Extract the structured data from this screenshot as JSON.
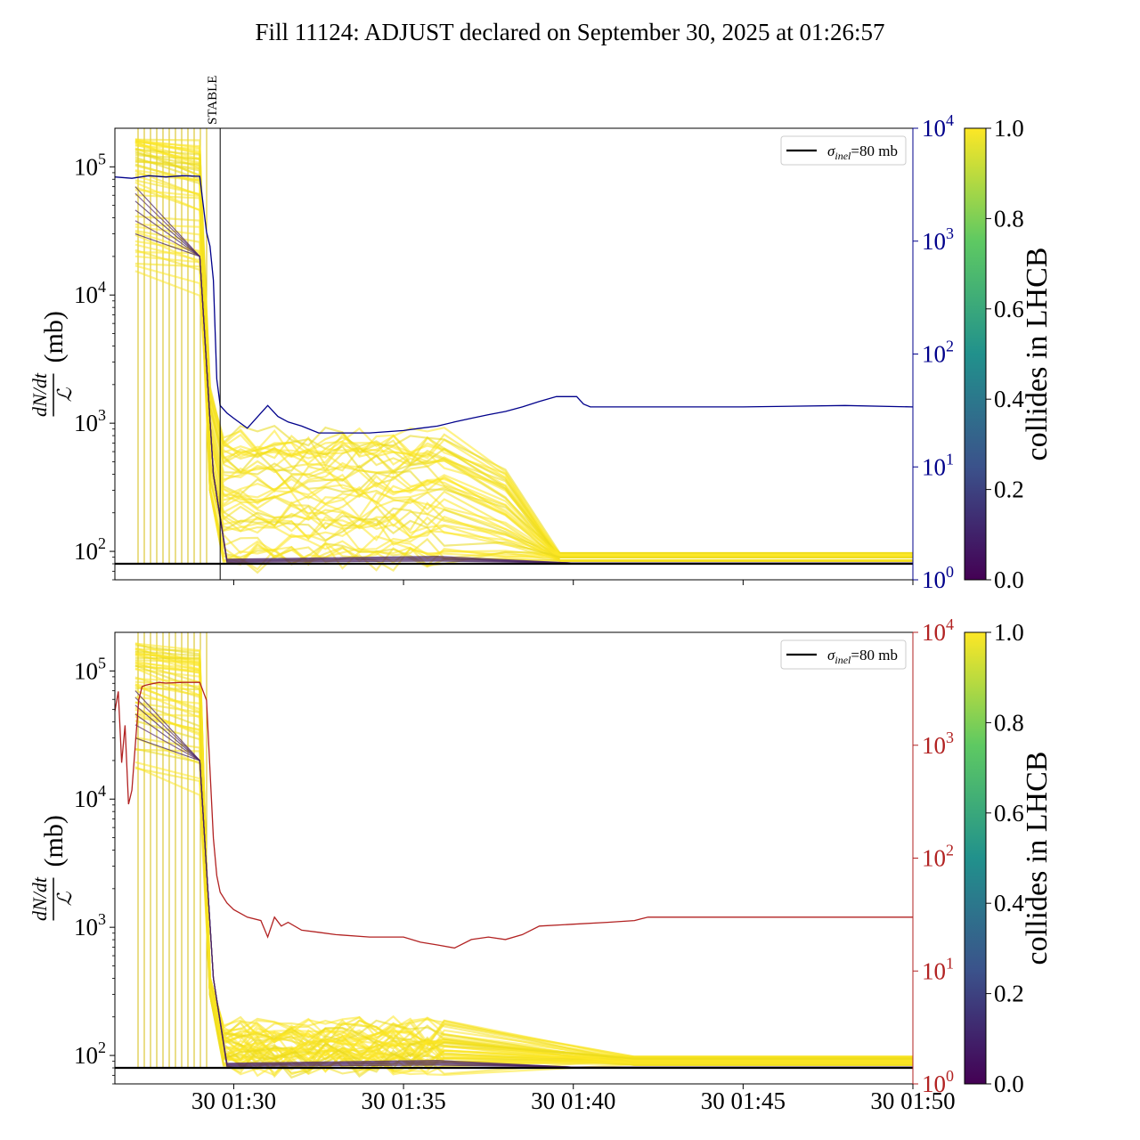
{
  "title": "Fill 11124: ADJUST declared on September 30, 2025 at 01:26:57",
  "chart_data": [
    {
      "type": "line",
      "panel": "top",
      "ylabel": "dN/dt / L (mb)",
      "ylabel_parts": {
        "numerator": "dN/dt",
        "denominator": "ℒ",
        "unit": "(mb)"
      },
      "yscale": "log",
      "ylim": [
        60,
        200000
      ],
      "y_ticks": [
        {
          "base": "10",
          "exp": "2",
          "value": 100
        },
        {
          "base": "10",
          "exp": "3",
          "value": 1000
        },
        {
          "base": "10",
          "exp": "4",
          "value": 10000
        },
        {
          "base": "10",
          "exp": "5",
          "value": 100000
        }
      ],
      "xlim_minutes": [
        26.5,
        50.0
      ],
      "x_ticks": [],
      "y2_scale": "log",
      "y2lim": [
        1,
        10000
      ],
      "y2_ticks": [
        {
          "base": "10",
          "exp": "0",
          "value": 1
        },
        {
          "base": "10",
          "exp": "1",
          "value": 10
        },
        {
          "base": "10",
          "exp": "2",
          "value": 100
        },
        {
          "base": "10",
          "exp": "3",
          "value": 1000
        },
        {
          "base": "10",
          "exp": "4",
          "value": 10000
        }
      ],
      "y2_color": "#00008b",
      "vline": {
        "label": "STABLE",
        "x_minute": 29.6
      },
      "legend": {
        "label_symbol": "σ",
        "label_sub": "inel",
        "label_value": "=80 mb",
        "placement": "upper right"
      },
      "reference_line": {
        "value": 80
      },
      "right_axis_series": {
        "color": "#00008b",
        "x_minutes": [
          26.5,
          27.0,
          27.5,
          28.0,
          28.5,
          29.0,
          29.2,
          29.3,
          29.4,
          29.5,
          29.6,
          29.8,
          30.0,
          30.4,
          30.8,
          31.0,
          31.3,
          31.6,
          32.0,
          32.5,
          33.0,
          34.0,
          35.0,
          35.5,
          36.0,
          36.5,
          37.0,
          37.5,
          38.0,
          38.5,
          39.0,
          39.5,
          39.8,
          40.1,
          40.3,
          40.5,
          41.0,
          42.0,
          43.0,
          45.0,
          48.0,
          50.0
        ],
        "values": [
          3700,
          3600,
          3800,
          3700,
          3800,
          3750,
          1200,
          900,
          450,
          60,
          35,
          30,
          27,
          22,
          30,
          35,
          28,
          25,
          23,
          20,
          20,
          20,
          21,
          22,
          23,
          25,
          27,
          29,
          31,
          34,
          38,
          42,
          42,
          42,
          36,
          34,
          34,
          34,
          34,
          34,
          35,
          34
        ]
      },
      "colorbar": {
        "label": "collides in LHCB",
        "range": [
          0.0,
          1.0
        ],
        "ticks": [
          "0.0",
          "0.2",
          "0.4",
          "0.6",
          "0.8",
          "1.0"
        ],
        "colormap": "viridis"
      }
    },
    {
      "type": "line",
      "panel": "bottom",
      "ylabel": "dN/dt / L (mb)",
      "ylabel_parts": {
        "numerator": "dN/dt",
        "denominator": "ℒ",
        "unit": "(mb)"
      },
      "yscale": "log",
      "ylim": [
        60,
        200000
      ],
      "y_ticks": [
        {
          "base": "10",
          "exp": "2",
          "value": 100
        },
        {
          "base": "10",
          "exp": "3",
          "value": 1000
        },
        {
          "base": "10",
          "exp": "4",
          "value": 10000
        },
        {
          "base": "10",
          "exp": "5",
          "value": 100000
        }
      ],
      "xlim_minutes": [
        26.5,
        50.0
      ],
      "x_ticks": [
        {
          "label": "30 01:30",
          "minute": 30
        },
        {
          "label": "30 01:35",
          "minute": 35
        },
        {
          "label": "30 01:40",
          "minute": 40
        },
        {
          "label": "30 01:45",
          "minute": 45
        },
        {
          "label": "30 01:50",
          "minute": 50
        }
      ],
      "y2_scale": "log",
      "y2lim": [
        1,
        10000
      ],
      "y2_ticks": [
        {
          "base": "10",
          "exp": "0",
          "value": 1
        },
        {
          "base": "10",
          "exp": "1",
          "value": 10
        },
        {
          "base": "10",
          "exp": "2",
          "value": 100
        },
        {
          "base": "10",
          "exp": "3",
          "value": 1000
        },
        {
          "base": "10",
          "exp": "4",
          "value": 10000
        }
      ],
      "y2_color": "#b22222",
      "legend": {
        "label_symbol": "σ",
        "label_sub": "inel",
        "label_value": "=80 mb",
        "placement": "upper right"
      },
      "reference_line": {
        "value": 80
      },
      "right_axis_series": {
        "color": "#b22222",
        "x_minutes": [
          26.5,
          26.6,
          26.7,
          26.8,
          26.9,
          27.0,
          27.2,
          27.3,
          27.4,
          27.6,
          27.8,
          28.0,
          28.5,
          29.0,
          29.2,
          29.3,
          29.4,
          29.5,
          29.6,
          29.8,
          30.0,
          30.4,
          30.8,
          31.0,
          31.2,
          31.4,
          31.6,
          32.0,
          32.5,
          33.0,
          34.0,
          35.0,
          35.5,
          36.0,
          36.5,
          37.0,
          37.5,
          38.0,
          38.5,
          39.0,
          40.0,
          41.0,
          41.8,
          42.0,
          42.2,
          44.0,
          46.0,
          48.0,
          50.0
        ],
        "values": [
          2000,
          3000,
          700,
          1500,
          300,
          400,
          2500,
          3300,
          3400,
          3500,
          3600,
          3550,
          3600,
          3600,
          2500,
          600,
          150,
          70,
          50,
          40,
          35,
          30,
          28,
          20,
          30,
          25,
          27,
          23,
          22,
          21,
          20,
          20,
          18,
          17,
          16,
          19,
          20,
          19,
          21,
          25,
          26,
          27,
          28,
          29,
          30,
          30,
          30,
          30,
          30
        ]
      },
      "colorbar": {
        "label": "collides in LHCB",
        "range": [
          0.0,
          1.0
        ],
        "ticks": [
          "0.0",
          "0.2",
          "0.4",
          "0.6",
          "0.8",
          "1.0"
        ],
        "colormap": "viridis"
      }
    }
  ]
}
